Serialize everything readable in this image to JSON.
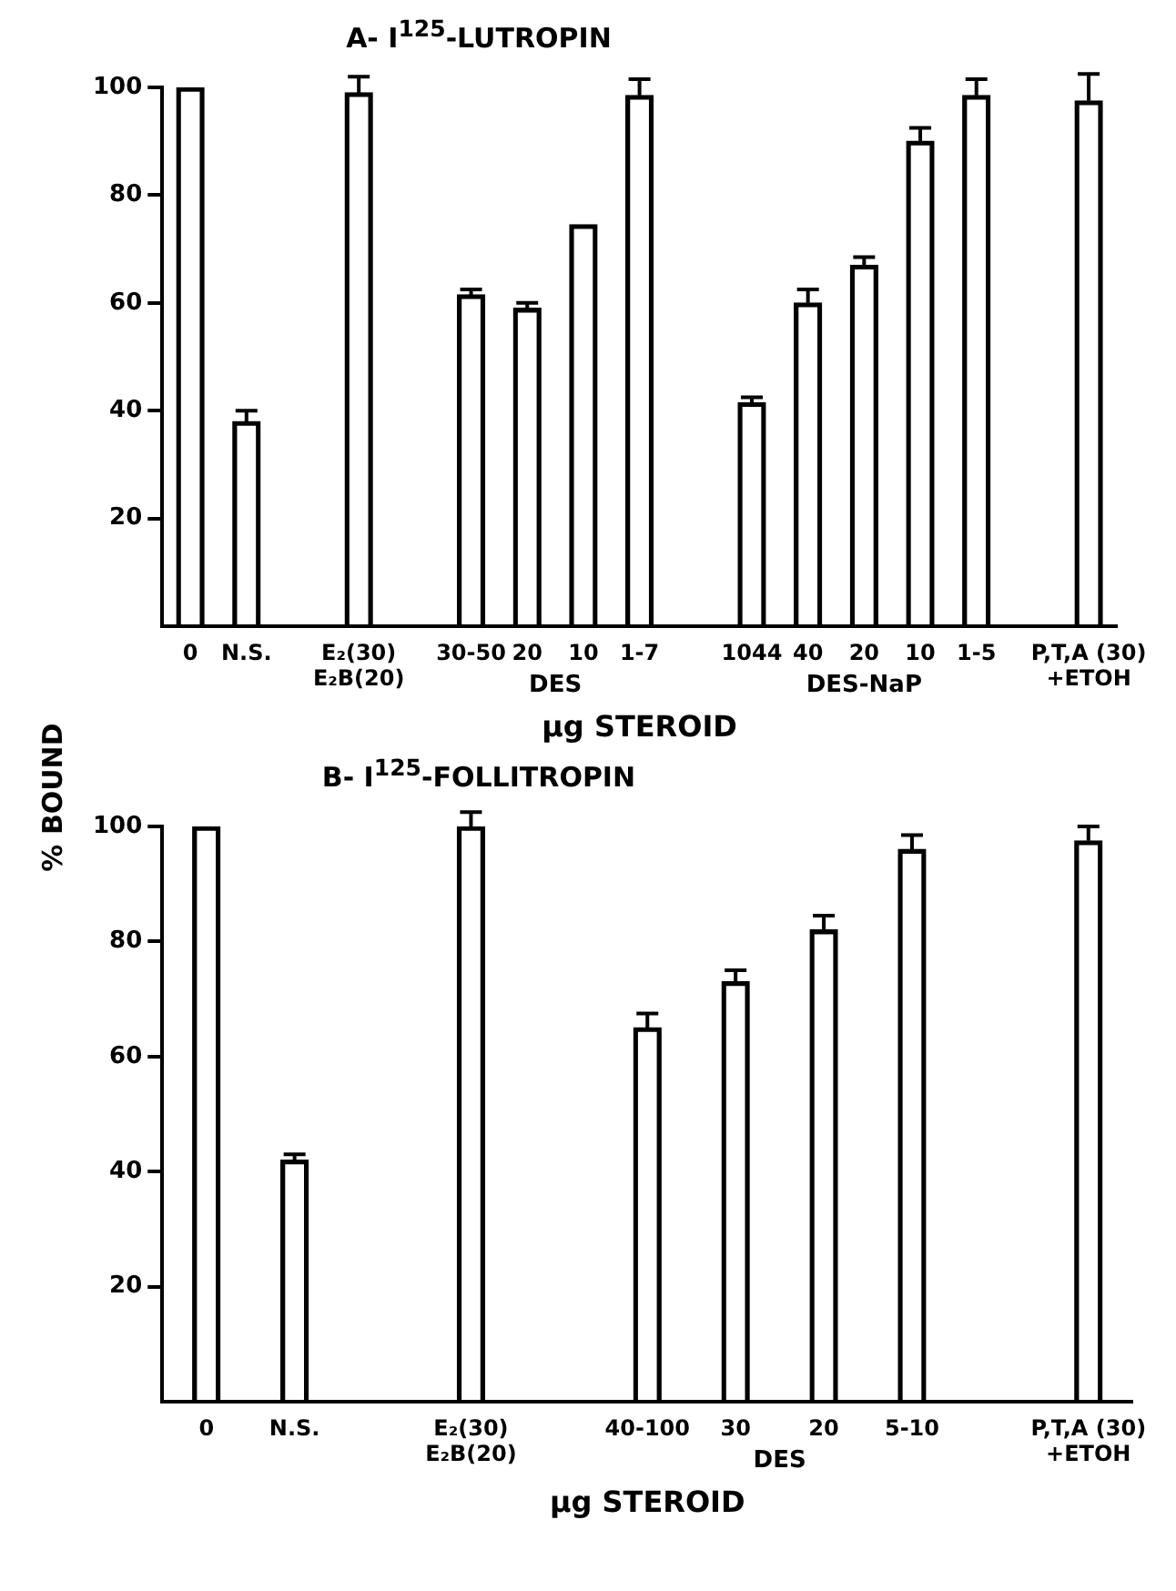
{
  "chart_data": [
    {
      "type": "bar",
      "title": "A- I$^{125}$-LUTROPIN",
      "xlabel": "µg STEROID",
      "ylabel": "% BOUND",
      "categories": [
        "0",
        "N.S.",
        null,
        "E₂(30)\nE₂B(20)",
        null,
        "30-50",
        "20",
        "10",
        "1-7",
        null,
        "1044",
        "40",
        "20",
        "10",
        "1-5",
        null,
        "P,T,A (30)\n+ETOH"
      ],
      "values": [
        100,
        38,
        null,
        99,
        null,
        61.5,
        59,
        74.5,
        98.5,
        null,
        41.5,
        60,
        67,
        90,
        98.5,
        null,
        97.5
      ],
      "errors": [
        null,
        [
          38,
          40
        ],
        null,
        [
          99,
          102
        ],
        null,
        [
          61.5,
          62.5
        ],
        [
          59,
          60
        ],
        null,
        [
          98.5,
          101.5
        ],
        null,
        [
          41.5,
          42.5
        ],
        [
          60,
          62.5
        ],
        [
          67,
          68.5
        ],
        [
          90,
          92.5
        ],
        [
          98.5,
          101.5
        ],
        null,
        [
          97.5,
          102.5
        ]
      ],
      "color": "#000000",
      "annotations": [
        "DES",
        "DES-NaP"
      ],
      "ylim": [
        0,
        100
      ],
      "yticks": [
        20,
        40,
        60,
        80,
        100
      ]
    },
    {
      "type": "bar",
      "title": "B- I$^{125}$-FOLLITROPIN",
      "xlabel": "µg STEROID",
      "categories": [
        "0",
        "N.S.",
        null,
        "E₂(30)\nE₂B(20)",
        null,
        "40-100",
        "30",
        "20",
        "5-10",
        null,
        "P,T,A (30)\n+ETOH"
      ],
      "values": [
        100,
        42,
        null,
        100,
        null,
        65,
        73,
        82,
        96,
        null,
        97.5
      ],
      "errors": [
        null,
        [
          42,
          43
        ],
        null,
        [
          100,
          102.5
        ],
        null,
        [
          65,
          67.5
        ],
        [
          73,
          75
        ],
        [
          82,
          84.5
        ],
        [
          96,
          98.5
        ],
        null,
        [
          97.5,
          100
        ]
      ],
      "color": "#000000",
      "annotations": [
        "DES"
      ],
      "ylim": [
        0,
        100
      ],
      "yticks": [
        20,
        40,
        60,
        80,
        100
      ]
    }
  ]
}
